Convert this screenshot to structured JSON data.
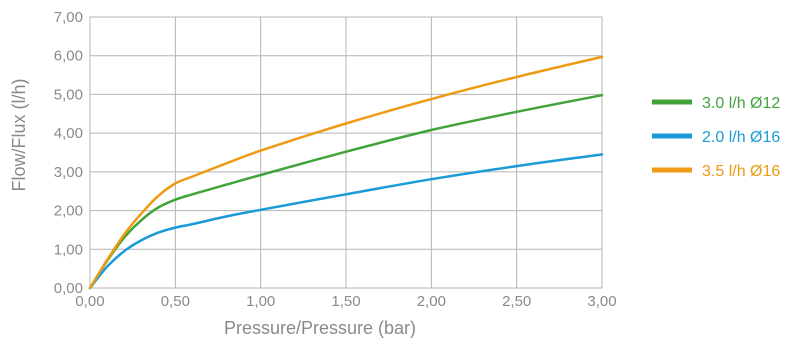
{
  "chart_data": {
    "type": "line",
    "xlabel": "Pressure/Pressure (bar)",
    "ylabel": "Flow/Flux (l/h)",
    "xlim": [
      0,
      3
    ],
    "ylim": [
      0,
      7
    ],
    "grid": true,
    "legend_position": "right",
    "x_ticks": [
      "0,00",
      "0,50",
      "1,00",
      "1,50",
      "2,00",
      "2,50",
      "3,00"
    ],
    "y_ticks": [
      "0,00",
      "1,00",
      "2,00",
      "3,00",
      "4,00",
      "5,00",
      "6,00",
      "7,00"
    ],
    "series": [
      {
        "name": "3.0 l/h Ø12",
        "color": "#43a33b",
        "x": [
          0,
          0.1,
          0.2,
          0.3,
          0.4,
          0.5,
          0.6,
          0.8,
          1.0,
          1.5,
          2.0,
          2.5,
          3.0
        ],
        "y": [
          0,
          0.7,
          1.3,
          1.75,
          2.08,
          2.28,
          2.42,
          2.67,
          2.92,
          3.52,
          4.08,
          4.55,
          4.98
        ]
      },
      {
        "name": "2.0 l/h Ø16",
        "color": "#1a9ad6",
        "x": [
          0,
          0.1,
          0.2,
          0.3,
          0.4,
          0.5,
          0.6,
          0.8,
          1.0,
          1.5,
          2.0,
          2.5,
          3.0
        ],
        "y": [
          0,
          0.55,
          0.95,
          1.23,
          1.43,
          1.56,
          1.65,
          1.85,
          2.02,
          2.42,
          2.81,
          3.15,
          3.45
        ]
      },
      {
        "name": "3.5 l/h Ø16",
        "color": "#ee9a12",
        "x": [
          0,
          0.1,
          0.2,
          0.3,
          0.4,
          0.5,
          0.6,
          0.8,
          1.0,
          1.5,
          2.0,
          2.5,
          3.0
        ],
        "y": [
          0,
          0.72,
          1.38,
          1.92,
          2.38,
          2.7,
          2.88,
          3.22,
          3.55,
          4.25,
          4.88,
          5.45,
          5.97
        ]
      }
    ]
  }
}
